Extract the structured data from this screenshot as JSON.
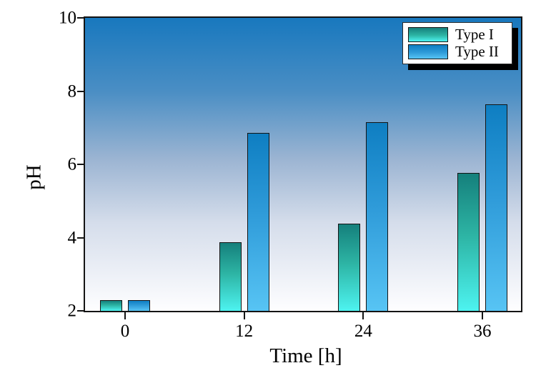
{
  "chart_data": {
    "type": "bar",
    "title": "",
    "xlabel": "Time [h]",
    "ylabel": "pH",
    "categories": [
      "0",
      "12",
      "24",
      "36"
    ],
    "series": [
      {
        "name": "Type I",
        "values": [
          2.3,
          3.9,
          4.4,
          5.8
        ],
        "color_top": "#15807c",
        "color_mid": "#2db4a4",
        "color_bottom": "#4df3f0"
      },
      {
        "name": "Type II",
        "values": [
          2.3,
          6.9,
          7.2,
          7.7
        ],
        "color_top": "#0e7ec2",
        "color_mid": "#2f9bd9",
        "color_bottom": "#57c4f4"
      }
    ],
    "ylim": [
      2,
      10
    ],
    "yticks": [
      "2",
      "4",
      "6",
      "8",
      "10"
    ],
    "grid": false,
    "legend_position": "top-right"
  },
  "colors": {
    "axis": "#141414",
    "text": "#000000",
    "legend_bg": "#ffffff",
    "legend_shadow": "#000000",
    "plot_bg_stops": [
      "#1878be",
      "#4a8ec4",
      "#9bb4d2",
      "#d5ddeb",
      "#fefeff"
    ],
    "plot_bg_positions": [
      0,
      25,
      48,
      70,
      100
    ]
  }
}
